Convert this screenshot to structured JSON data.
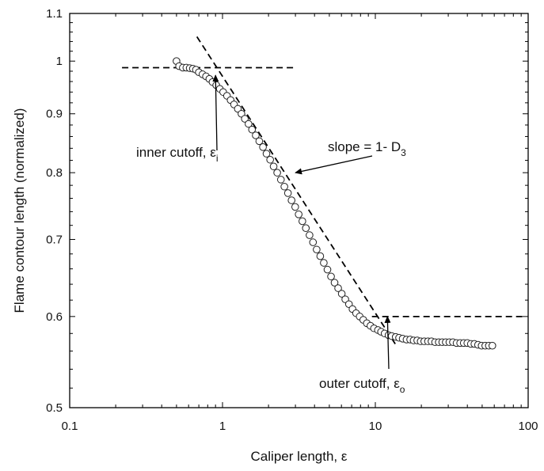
{
  "chart_data": {
    "type": "scatter",
    "title": "",
    "xlabel": "Caliper length, ε",
    "ylabel": "Flame contour length (normalized)",
    "xscale": "log",
    "yscale": "log",
    "xlim": [
      0.1,
      100
    ],
    "ylim": [
      0.5,
      1.1
    ],
    "x_ticks": [
      0.1,
      1,
      10,
      100
    ],
    "x_tick_labels": [
      "0.1",
      "1",
      "10",
      "100"
    ],
    "y_ticks": [
      0.5,
      0.6,
      0.7,
      0.8,
      0.9,
      1,
      1.1
    ],
    "y_tick_labels": [
      "0.5",
      "0.6",
      "0.7",
      "0.8",
      "0.9",
      "1",
      "1.1"
    ],
    "grid": false,
    "series": [
      {
        "marker": "open-circle",
        "points": [
          [
            0.5,
            1.0
          ],
          [
            0.52,
            0.99
          ],
          [
            0.55,
            0.987
          ],
          [
            0.58,
            0.987
          ],
          [
            0.61,
            0.986
          ],
          [
            0.64,
            0.985
          ],
          [
            0.67,
            0.983
          ],
          [
            0.7,
            0.978
          ],
          [
            0.74,
            0.974
          ],
          [
            0.78,
            0.97
          ],
          [
            0.82,
            0.965
          ],
          [
            0.86,
            0.959
          ],
          [
            0.91,
            0.953
          ],
          [
            0.96,
            0.946
          ],
          [
            1.01,
            0.94
          ],
          [
            1.07,
            0.933
          ],
          [
            1.13,
            0.925
          ],
          [
            1.19,
            0.917
          ],
          [
            1.26,
            0.909
          ],
          [
            1.33,
            0.9
          ],
          [
            1.4,
            0.891
          ],
          [
            1.48,
            0.882
          ],
          [
            1.56,
            0.872
          ],
          [
            1.65,
            0.862
          ],
          [
            1.74,
            0.852
          ],
          [
            1.84,
            0.842
          ],
          [
            1.94,
            0.831
          ],
          [
            2.05,
            0.821
          ],
          [
            2.16,
            0.81
          ],
          [
            2.28,
            0.8
          ],
          [
            2.41,
            0.789
          ],
          [
            2.54,
            0.778
          ],
          [
            2.68,
            0.768
          ],
          [
            2.83,
            0.757
          ],
          [
            2.99,
            0.747
          ],
          [
            3.15,
            0.736
          ],
          [
            3.33,
            0.726
          ],
          [
            3.51,
            0.716
          ],
          [
            3.71,
            0.706
          ],
          [
            3.91,
            0.696
          ],
          [
            4.13,
            0.686
          ],
          [
            4.36,
            0.677
          ],
          [
            4.6,
            0.668
          ],
          [
            4.86,
            0.659
          ],
          [
            5.13,
            0.65
          ],
          [
            5.41,
            0.642
          ],
          [
            5.71,
            0.635
          ],
          [
            6.03,
            0.628
          ],
          [
            6.36,
            0.621
          ],
          [
            6.72,
            0.615
          ],
          [
            7.09,
            0.609
          ],
          [
            7.48,
            0.604
          ],
          [
            7.9,
            0.6
          ],
          [
            8.34,
            0.596
          ],
          [
            8.8,
            0.592
          ],
          [
            9.29,
            0.589
          ],
          [
            9.8,
            0.586
          ],
          [
            10.4,
            0.584
          ],
          [
            10.9,
            0.582
          ],
          [
            11.5,
            0.58
          ],
          [
            12.2,
            0.578
          ],
          [
            12.8,
            0.577
          ],
          [
            13.6,
            0.576
          ],
          [
            14.3,
            0.575
          ],
          [
            15.1,
            0.574
          ],
          [
            16.0,
            0.573
          ],
          [
            16.9,
            0.573
          ],
          [
            17.8,
            0.572
          ],
          [
            18.8,
            0.572
          ],
          [
            19.8,
            0.571
          ],
          [
            20.9,
            0.571
          ],
          [
            22.1,
            0.571
          ],
          [
            23.3,
            0.571
          ],
          [
            24.6,
            0.57
          ],
          [
            26.0,
            0.57
          ],
          [
            27.4,
            0.57
          ],
          [
            28.9,
            0.57
          ],
          [
            30.5,
            0.57
          ],
          [
            32.2,
            0.57
          ],
          [
            34.0,
            0.569
          ],
          [
            35.9,
            0.569
          ],
          [
            37.9,
            0.569
          ],
          [
            40.0,
            0.569
          ],
          [
            42.2,
            0.568
          ],
          [
            44.5,
            0.568
          ],
          [
            47.0,
            0.567
          ],
          [
            49.6,
            0.566
          ],
          [
            52.4,
            0.566
          ],
          [
            55.3,
            0.566
          ],
          [
            58.3,
            0.566
          ]
        ]
      }
    ],
    "reference_lines": [
      {
        "style": "dashed",
        "from": [
          0.22,
          0.987
        ],
        "to": [
          2.9,
          0.987
        ]
      },
      {
        "style": "dashed",
        "from": [
          0.68,
          1.05
        ],
        "to": [
          13.5,
          0.568
        ]
      },
      {
        "style": "dashed",
        "from": [
          9.5,
          0.6
        ],
        "to": [
          95,
          0.6
        ]
      }
    ],
    "annotations": [
      {
        "text": "inner cutoff, ε",
        "subscript": "i",
        "arrow_to": [
          0.9,
          0.972
        ]
      },
      {
        "text": "slope = 1- D",
        "subscript": "3",
        "arrow_to": [
          3.0,
          0.8
        ]
      },
      {
        "text": "outer cutoff, ε",
        "subscript": "o",
        "arrow_to": [
          12.0,
          0.6
        ]
      }
    ]
  }
}
